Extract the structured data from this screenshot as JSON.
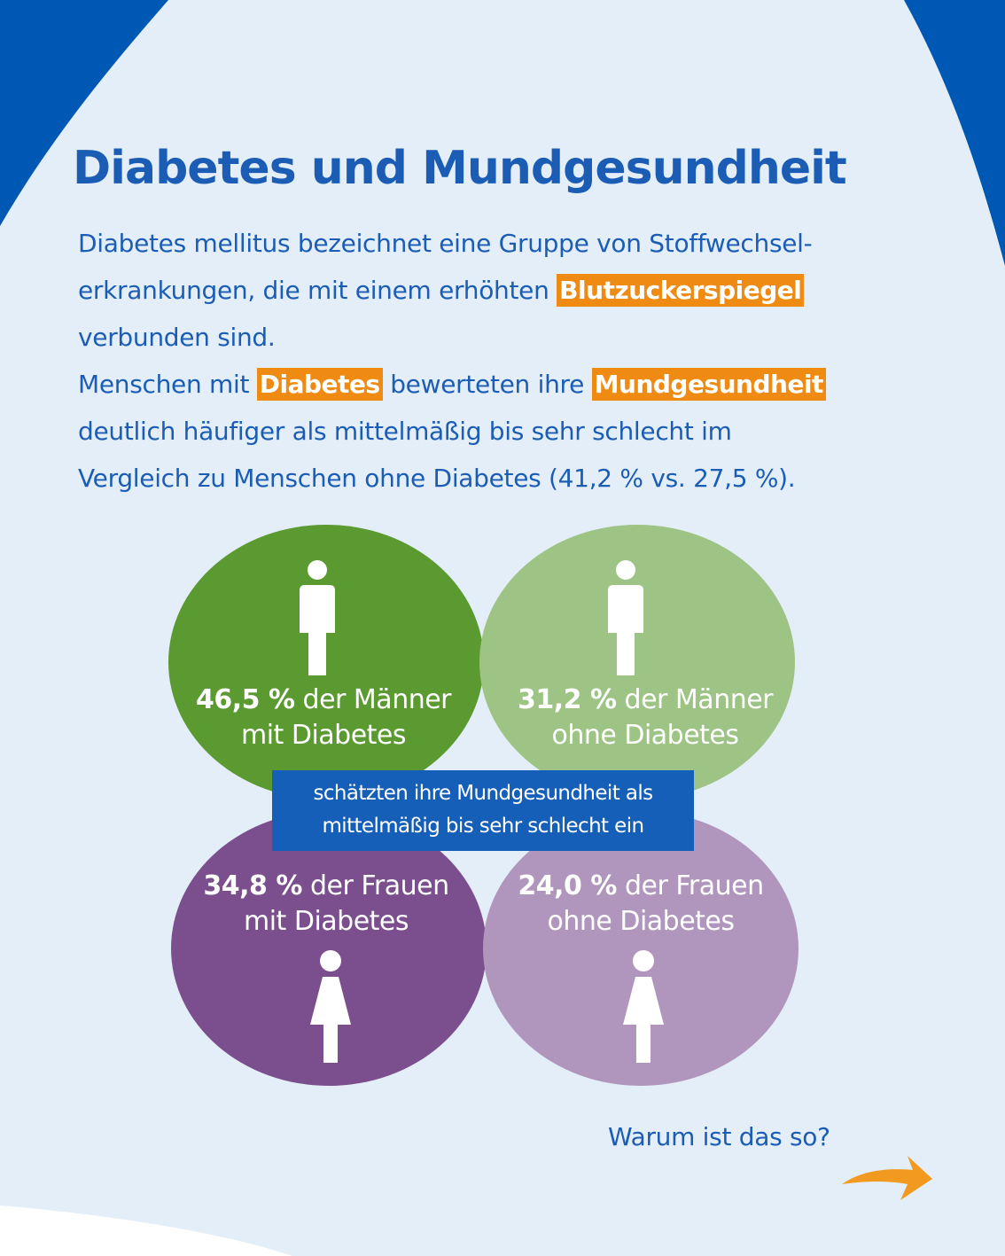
{
  "title": "Diabetes und Mundgesundheit",
  "intro": {
    "line1": "Diabetes mellitus bezeichnet eine Gruppe von Stoffwechsel-",
    "line2_pre": "erkrankungen, die mit einem erhöhten ",
    "line2_hl": "Blutzuckerspiegel",
    "line3": "verbunden sind.",
    "line4_pre": "Menschen mit ",
    "line4_hl1": "Diabetes",
    "line4_mid": " bewerteten ihre ",
    "line4_hl2": "Mundgesundheit",
    "line5": "deutlich häufiger als mittelmäßig bis sehr schlecht im",
    "line6": "Vergleich zu Menschen ohne Diabetes (41,2 % vs. 27,5 %)."
  },
  "stats": {
    "men_diabetes": {
      "value": "46,5 %",
      "label": " der Männer",
      "sub": "mit Diabetes"
    },
    "men_no_diabetes": {
      "value": "31,2 %",
      "label": " der Männer",
      "sub": "ohne Diabetes"
    },
    "women_diabetes": {
      "value": "34,8 %",
      "label": " der Frauen",
      "sub": "mit Diabetes"
    },
    "women_no_diabetes": {
      "value": "24,0 %",
      "label": " der Frauen",
      "sub": "ohne Diabetes"
    }
  },
  "center_text": {
    "line1": "schätzten ihre Mundgesundheit als",
    "line2": "mittelmäßig bis sehr schlecht ein"
  },
  "question": "Warum ist das so?",
  "icons": [
    "male-figure-icon",
    "female-figure-icon",
    "arrow-right-icon"
  ],
  "colors": {
    "background": "#e4eef8",
    "brand_blue": "#1b5db5",
    "highlight_orange": "#ef8b12",
    "men_diabetes": "#5a9a31",
    "men_no_diabetes": "#9dc484",
    "women_diabetes": "#7b4f8e",
    "women_no_diabetes": "#b096bc"
  }
}
